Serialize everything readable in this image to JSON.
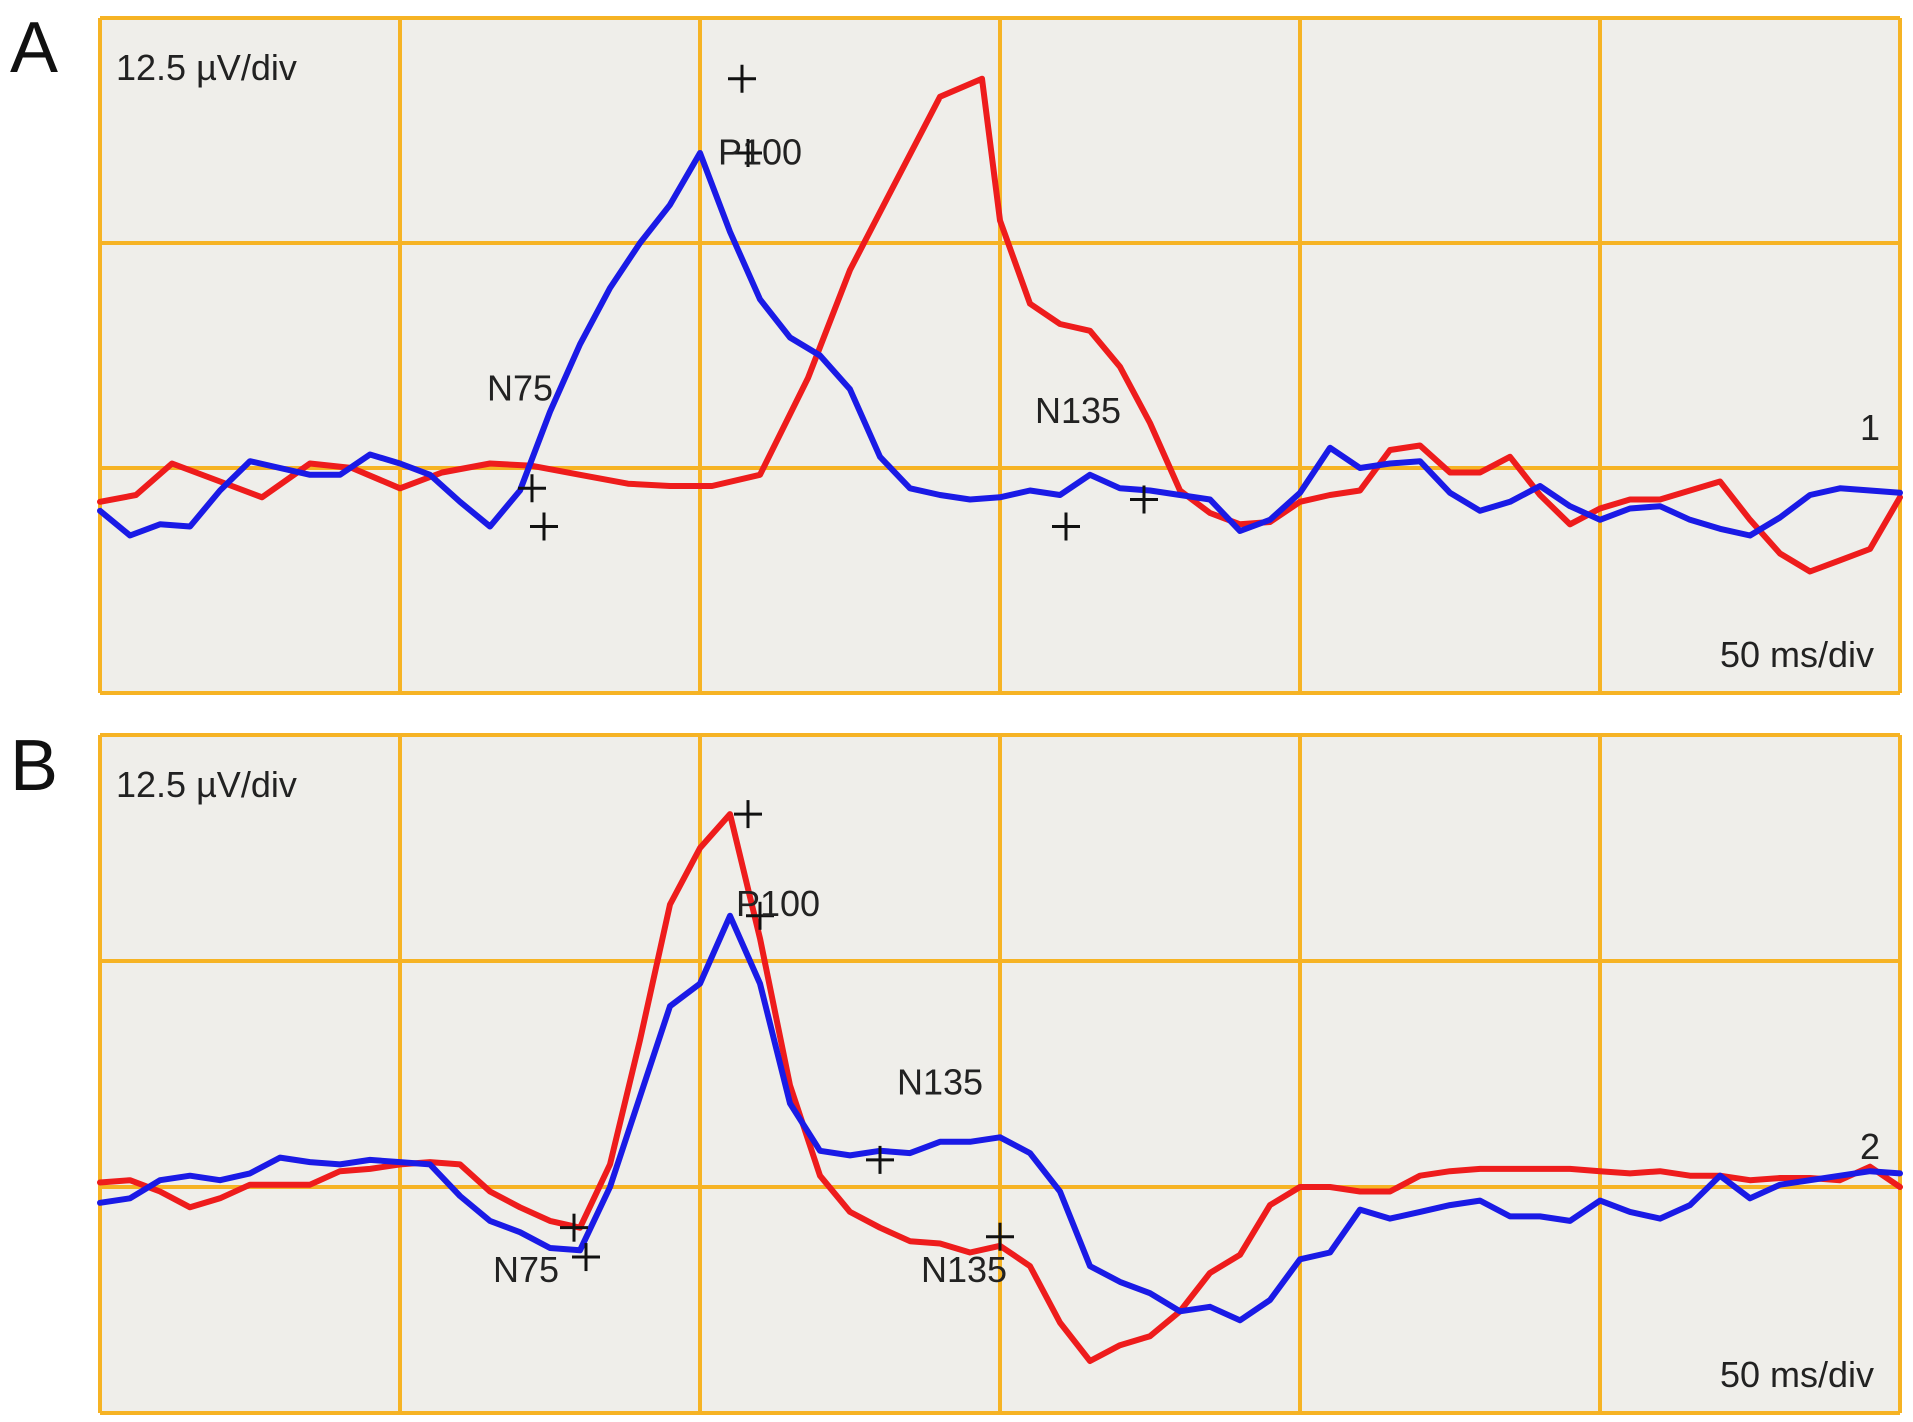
{
  "colors": {
    "background": "#efeeea",
    "grid": "#f6b324",
    "series_red": "#ee1c1c",
    "series_blue": "#1a1ae6",
    "marker": "#111111",
    "text": "#222222"
  },
  "chart_data": [
    {
      "panel": "A",
      "type": "line",
      "scale_label": "12.5 µV/div",
      "time_label": "50 ms/div",
      "channel": "1",
      "grid": true,
      "xlim": [
        0,
        300
      ],
      "ylim": [
        -10,
        20
      ],
      "x_unit": "ms",
      "y_unit": "µV",
      "series": [
        {
          "color": "red",
          "x": [
            0,
            6,
            12,
            20,
            27,
            35,
            42,
            50,
            57,
            65,
            72,
            80,
            88,
            95,
            102,
            110,
            118,
            125,
            132,
            140,
            147,
            150,
            155,
            160,
            165,
            170,
            175,
            180,
            185,
            190,
            195,
            200,
            205,
            210,
            215,
            220,
            225,
            230,
            235,
            240,
            245,
            250,
            255,
            260,
            265,
            270,
            275,
            280,
            285,
            290,
            295,
            300
          ],
          "y": [
            -1.5,
            -1.2,
            0.2,
            -0.6,
            -1.3,
            0.2,
            0.0,
            -0.9,
            -0.2,
            0.2,
            0.1,
            -0.3,
            -0.7,
            -0.8,
            -0.8,
            -0.3,
            4.0,
            8.8,
            12.4,
            16.5,
            17.3,
            11.0,
            7.3,
            6.4,
            6.1,
            4.5,
            2.0,
            -1.0,
            -2.0,
            -2.5,
            -2.4,
            -1.5,
            -1.2,
            -1.0,
            0.8,
            1.0,
            -0.2,
            -0.2,
            0.5,
            -1.2,
            -2.5,
            -1.8,
            -1.4,
            -1.4,
            -1.0,
            -0.6,
            -2.3,
            -3.8,
            -4.6,
            -4.1,
            -3.6,
            -1.3
          ]
        },
        {
          "color": "blue",
          "x": [
            0,
            5,
            10,
            15,
            20,
            25,
            30,
            35,
            40,
            45,
            50,
            55,
            60,
            65,
            70,
            75,
            80,
            85,
            90,
            95,
            100,
            105,
            110,
            115,
            120,
            125,
            130,
            135,
            140,
            145,
            150,
            155,
            160,
            165,
            170,
            175,
            180,
            185,
            190,
            195,
            200,
            205,
            210,
            215,
            220,
            225,
            230,
            235,
            240,
            245,
            250,
            255,
            260,
            265,
            270,
            275,
            280,
            285,
            290,
            295,
            300
          ],
          "y": [
            -1.9,
            -3.0,
            -2.5,
            -2.6,
            -1.0,
            0.3,
            0.0,
            -0.3,
            -0.3,
            0.6,
            0.2,
            -0.3,
            -1.5,
            -2.6,
            -1.0,
            2.5,
            5.5,
            8.0,
            10.0,
            11.7,
            14.0,
            10.5,
            7.5,
            5.8,
            5.0,
            3.5,
            0.5,
            -0.9,
            -1.2,
            -1.4,
            -1.3,
            -1.0,
            -1.2,
            -0.3,
            -0.9,
            -1.0,
            -1.2,
            -1.4,
            -2.8,
            -2.3,
            -1.1,
            0.9,
            0.0,
            0.2,
            0.3,
            -1.1,
            -1.9,
            -1.5,
            -0.8,
            -1.7,
            -2.3,
            -1.8,
            -1.7,
            -2.3,
            -2.7,
            -3.0,
            -2.2,
            -1.2,
            -0.9,
            -1.0,
            -1.1
          ]
        }
      ],
      "annotations": [
        {
          "text": "P100",
          "x": 110,
          "y": 13.5
        },
        {
          "text": "N75",
          "x": 70,
          "y": 3.0
        },
        {
          "text": "N135",
          "x": 163,
          "y": 2.0
        }
      ],
      "markers": [
        {
          "series": "red",
          "x": 72,
          "y": -0.9
        },
        {
          "series": "blue",
          "x": 74,
          "y": -2.6
        },
        {
          "series": "red",
          "x": 107,
          "y": 17.3
        },
        {
          "series": "blue",
          "x": 108,
          "y": 14.0
        },
        {
          "series": "red",
          "x": 161,
          "y": -2.6
        },
        {
          "series": "blue",
          "x": 174,
          "y": -1.4
        }
      ]
    },
    {
      "panel": "B",
      "type": "line",
      "scale_label": "12.5 µV/div",
      "time_label": "50 ms/div",
      "channel": "2",
      "grid": true,
      "xlim": [
        0,
        300
      ],
      "ylim": [
        -10,
        20
      ],
      "x_unit": "ms",
      "y_unit": "µV",
      "series": [
        {
          "color": "red",
          "x": [
            0,
            5,
            10,
            15,
            20,
            25,
            30,
            35,
            40,
            45,
            50,
            55,
            60,
            65,
            70,
            75,
            80,
            85,
            90,
            95,
            100,
            105,
            110,
            115,
            120,
            125,
            130,
            135,
            140,
            145,
            150,
            155,
            160,
            165,
            170,
            175,
            180,
            185,
            190,
            195,
            200,
            205,
            210,
            215,
            220,
            225,
            230,
            235,
            240,
            245,
            250,
            255,
            260,
            265,
            270,
            275,
            280,
            285,
            290,
            295,
            300
          ],
          "y": [
            0.2,
            0.3,
            -0.2,
            -0.9,
            -0.5,
            0.1,
            0.1,
            0.1,
            0.7,
            0.8,
            1.0,
            1.1,
            1.0,
            -0.2,
            -0.9,
            -1.5,
            -1.8,
            1.0,
            6.5,
            12.5,
            15.0,
            16.5,
            11.0,
            4.5,
            0.5,
            -1.1,
            -1.8,
            -2.4,
            -2.5,
            -2.9,
            -2.6,
            -3.5,
            -6.0,
            -7.7,
            -7.0,
            -6.6,
            -5.5,
            -3.8,
            -3.0,
            -0.8,
            0.0,
            0.0,
            -0.2,
            -0.2,
            0.5,
            0.7,
            0.8,
            0.8,
            0.8,
            0.8,
            0.7,
            0.6,
            0.7,
            0.5,
            0.5,
            0.3,
            0.4,
            0.4,
            0.3,
            0.9,
            0.0
          ]
        },
        {
          "color": "blue",
          "x": [
            0,
            5,
            10,
            15,
            20,
            25,
            30,
            35,
            40,
            45,
            50,
            55,
            60,
            65,
            70,
            75,
            80,
            85,
            90,
            95,
            100,
            105,
            110,
            115,
            120,
            125,
            130,
            135,
            140,
            145,
            150,
            155,
            160,
            165,
            170,
            175,
            180,
            185,
            190,
            195,
            200,
            205,
            210,
            215,
            220,
            225,
            230,
            235,
            240,
            245,
            250,
            255,
            260,
            265,
            270,
            275,
            280,
            285,
            290,
            295,
            300
          ],
          "y": [
            -0.7,
            -0.5,
            0.3,
            0.5,
            0.3,
            0.6,
            1.3,
            1.1,
            1.0,
            1.2,
            1.1,
            1.0,
            -0.4,
            -1.5,
            -2.0,
            -2.7,
            -2.8,
            0.0,
            4.0,
            8.0,
            9.0,
            12.0,
            9.0,
            3.7,
            1.6,
            1.4,
            1.6,
            1.5,
            2.0,
            2.0,
            2.2,
            1.5,
            -0.2,
            -3.5,
            -4.2,
            -4.7,
            -5.5,
            -5.3,
            -5.9,
            -5.0,
            -3.2,
            -2.9,
            -1.0,
            -1.4,
            -1.1,
            -0.8,
            -0.6,
            -1.3,
            -1.3,
            -1.5,
            -0.6,
            -1.1,
            -1.4,
            -0.8,
            0.5,
            -0.5,
            0.1,
            0.3,
            0.5,
            0.7,
            0.6
          ]
        }
      ],
      "annotations": [
        {
          "text": "P100",
          "x": 113,
          "y": 12.0
        },
        {
          "text": "N135",
          "x": 140,
          "y": 4.1
        },
        {
          "text": "N75",
          "x": 71,
          "y": -4.2
        },
        {
          "text": "N135",
          "x": 144,
          "y": -4.2
        }
      ],
      "markers": [
        {
          "series": "red",
          "x": 79,
          "y": -1.8
        },
        {
          "series": "blue",
          "x": 81,
          "y": -3.1
        },
        {
          "series": "red",
          "x": 108,
          "y": 16.5
        },
        {
          "series": "blue",
          "x": 110,
          "y": 12.0
        },
        {
          "series": "blue",
          "x": 130,
          "y": 1.2
        },
        {
          "series": "red",
          "x": 150,
          "y": -2.2
        }
      ]
    }
  ]
}
